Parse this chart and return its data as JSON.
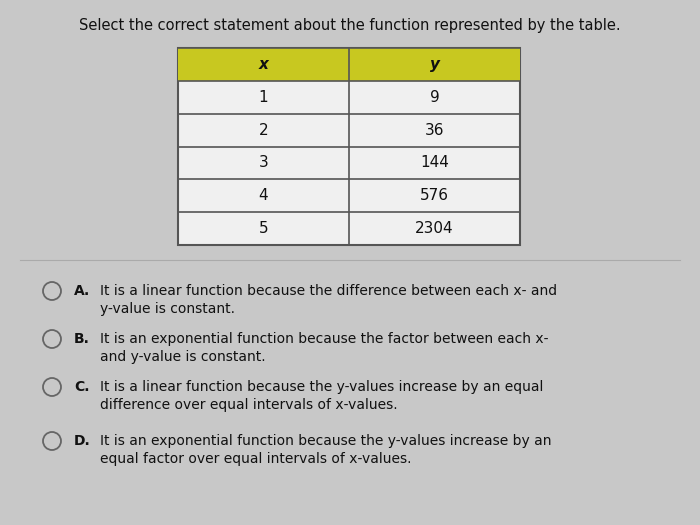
{
  "title": "Select the correct statement about the function represented by the table.",
  "title_fontsize": 10.5,
  "background_color": "#c8c8c8",
  "table_header_color": "#c8c820",
  "table_border_color": "#555555",
  "table_bg_color": "#f0f0f0",
  "table_x_values": [
    "1",
    "2",
    "3",
    "4",
    "5"
  ],
  "table_y_values": [
    "9",
    "36",
    "144",
    "576",
    "2304"
  ],
  "table_headers": [
    "x",
    "y"
  ],
  "option_texts": [
    [
      "It is a linear function because the difference between each x- and",
      "y-value is constant."
    ],
    [
      "It is an exponential function because the factor between each x-",
      "and y-value is constant."
    ],
    [
      "It is a linear function because the y-values increase by an equal",
      "difference over equal intervals of x-values."
    ],
    [
      "It is an exponential function because the y-values increase by an",
      "equal factor over equal intervals of x-values."
    ]
  ],
  "option_labels": [
    "A.",
    "B.",
    "C.",
    "D."
  ],
  "text_color": "#111111",
  "circle_color": "#666666"
}
